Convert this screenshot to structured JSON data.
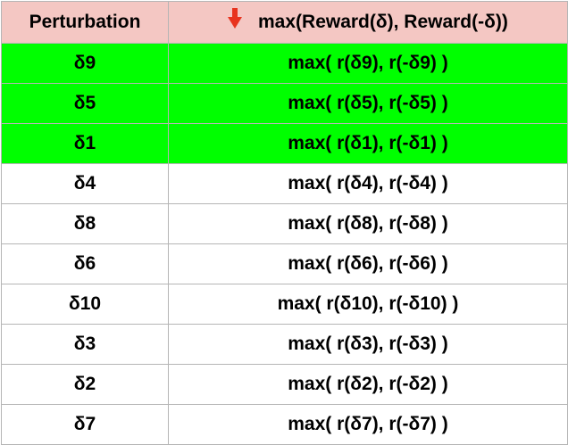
{
  "colors": {
    "header_bg": "#f4c7c3",
    "highlight_bg": "#00ff00",
    "plain_bg": "#ffffff",
    "border": "#b5b5b5",
    "sort_arrow": "#e8331e"
  },
  "table": {
    "headers": {
      "col1": "Perturbation",
      "col2": "max(Reward(δ), Reward(-δ))",
      "col2_sort_icon": "sort-descending-arrow-icon"
    },
    "rows": [
      {
        "perturbation": "δ9",
        "formula": "max( r(δ9), r(-δ9) )",
        "highlighted": true
      },
      {
        "perturbation": "δ5",
        "formula": "max( r(δ5), r(-δ5) )",
        "highlighted": true
      },
      {
        "perturbation": "δ1",
        "formula": "max( r(δ1), r(-δ1) )",
        "highlighted": true
      },
      {
        "perturbation": "δ4",
        "formula": "max( r(δ4), r(-δ4) )",
        "highlighted": false
      },
      {
        "perturbation": "δ8",
        "formula": "max( r(δ8), r(-δ8) )",
        "highlighted": false
      },
      {
        "perturbation": "δ6",
        "formula": "max( r(δ6), r(-δ6) )",
        "highlighted": false
      },
      {
        "perturbation": "δ10",
        "formula": "max( r(δ10), r(-δ10) )",
        "highlighted": false
      },
      {
        "perturbation": "δ3",
        "formula": "max( r(δ3), r(-δ3) )",
        "highlighted": false
      },
      {
        "perturbation": "δ2",
        "formula": "max( r(δ2), r(-δ2) )",
        "highlighted": false
      },
      {
        "perturbation": "δ7",
        "formula": "max( r(δ7), r(-δ7) )",
        "highlighted": false
      }
    ]
  }
}
